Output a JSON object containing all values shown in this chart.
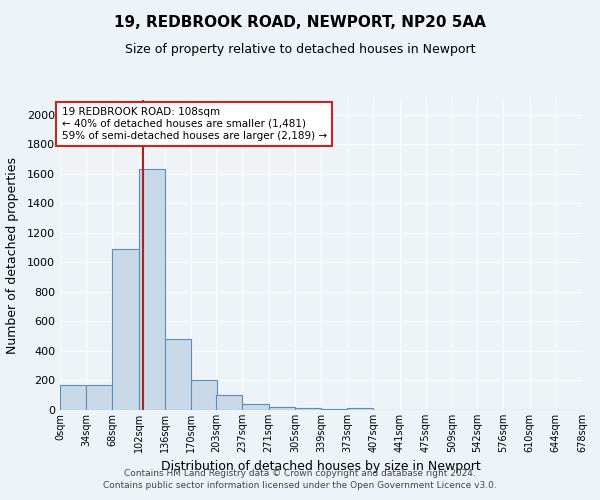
{
  "title": "19, REDBROOK ROAD, NEWPORT, NP20 5AA",
  "subtitle": "Size of property relative to detached houses in Newport",
  "xlabel": "Distribution of detached houses by size in Newport",
  "ylabel": "Number of detached properties",
  "bin_labels": [
    "0sqm",
    "34sqm",
    "68sqm",
    "102sqm",
    "136sqm",
    "170sqm",
    "203sqm",
    "237sqm",
    "271sqm",
    "305sqm",
    "339sqm",
    "373sqm",
    "407sqm",
    "441sqm",
    "475sqm",
    "509sqm",
    "542sqm",
    "576sqm",
    "610sqm",
    "644sqm",
    "678sqm"
  ],
  "bin_edges": [
    0,
    34,
    68,
    102,
    136,
    170,
    203,
    237,
    271,
    305,
    339,
    373,
    407,
    441,
    475,
    509,
    542,
    576,
    610,
    644,
    678
  ],
  "bar_heights": [
    170,
    170,
    1090,
    1630,
    480,
    200,
    100,
    40,
    20,
    15,
    10,
    15,
    0,
    0,
    0,
    0,
    0,
    0,
    0,
    0
  ],
  "bar_color": "#c9d9e8",
  "bar_edge_color": "#5a8fbb",
  "property_value": 108,
  "red_line_color": "#aa2222",
  "annotation_box_color": "#ffffff",
  "annotation_box_edge": "#cc2222",
  "annotation_line1": "19 REDBROOK ROAD: 108sqm",
  "annotation_line2": "← 40% of detached houses are smaller (1,481)",
  "annotation_line3": "59% of semi-detached houses are larger (2,189) →",
  "ylim": [
    0,
    2100
  ],
  "yticks": [
    0,
    200,
    400,
    600,
    800,
    1000,
    1200,
    1400,
    1600,
    1800,
    2000
  ],
  "xlim": [
    0,
    678
  ],
  "bg_color": "#eef3f8",
  "grid_color": "#ffffff",
  "footer1": "Contains HM Land Registry data © Crown copyright and database right 2024.",
  "footer2": "Contains public sector information licensed under the Open Government Licence v3.0."
}
